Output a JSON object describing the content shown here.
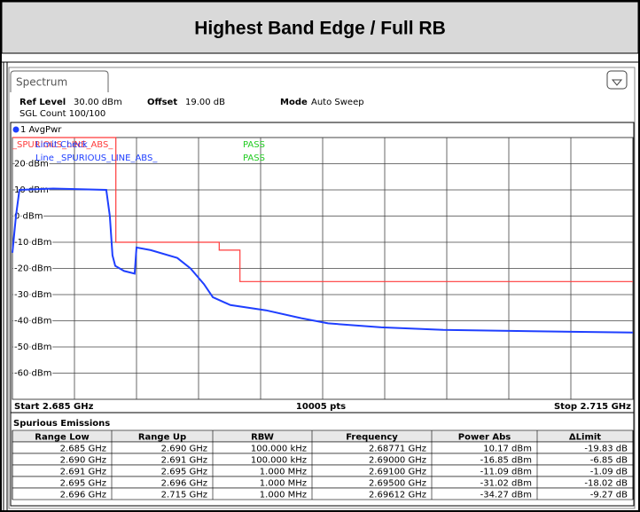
{
  "header": {
    "title": "Highest Band Edge / Full RB"
  },
  "instrument": {
    "tab": "Spectrum",
    "ref_level_label": "Ref Level",
    "ref_level": "30.00 dBm",
    "offset_label": "Offset",
    "offset": "19.00 dB",
    "mode_label": "Mode",
    "mode": "Auto Sweep",
    "count": "SGL Count 100/100"
  },
  "chart_data": {
    "type": "line",
    "series": [
      {
        "name": "1 AvgPwr",
        "color": "#1f3fff",
        "x": [
          2.685,
          2.68517,
          2.68534,
          2.68697,
          2.68954,
          2.68971,
          2.68984,
          2.68997,
          2.6904,
          2.69091,
          2.691,
          2.69169,
          2.69297,
          2.69361,
          2.69426,
          2.69469,
          2.69554,
          2.69726,
          2.69897,
          2.70026,
          2.70283,
          2.70583,
          2.71011,
          2.715
        ],
        "values": [
          -14,
          0,
          10,
          10.5,
          10,
          0,
          -15,
          -19,
          -21,
          -22,
          -12,
          -13,
          -16,
          -20,
          -26,
          -31,
          -34,
          -36,
          -39,
          -41,
          -42.5,
          -43.5,
          -44,
          -44.5
        ]
      },
      {
        "name": "_SPURIOUS_LINE_ABS_",
        "color": "#ff3b3b",
        "x": [
          2.685,
          2.69,
          2.69,
          2.695,
          2.695,
          2.696,
          2.696,
          2.715
        ],
        "values": [
          30,
          30,
          -10,
          -10,
          -13,
          -13,
          -25,
          -25
        ]
      }
    ],
    "limit_check_label": "Limit Check",
    "limit_check_result": "PASS",
    "line_label": "Line _SPURIOUS_LINE_ABS_",
    "line_result": "PASS",
    "xlim": [
      2.685,
      2.715
    ],
    "xticks": [
      2.685,
      2.688,
      2.691,
      2.694,
      2.697,
      2.7,
      2.703,
      2.706,
      2.709,
      2.712,
      2.715
    ],
    "ylim": [
      -70,
      30
    ],
    "yticks": [
      {
        "value": 20,
        "label": "20 dBm"
      },
      {
        "value": 10,
        "label": "10 dBm"
      },
      {
        "value": 0,
        "label": "0 dBm"
      },
      {
        "value": -10,
        "label": "-10 dBm"
      },
      {
        "value": -20,
        "label": "-20 dBm"
      },
      {
        "value": -30,
        "label": "-30 dBm"
      },
      {
        "value": -40,
        "label": "-40 dBm"
      },
      {
        "value": -50,
        "label": "-50 dBm"
      },
      {
        "value": -60,
        "label": "-60 dBm"
      }
    ],
    "grid": true,
    "start_label": "Start 2.685 GHz",
    "points_label": "10005 pts",
    "stop_label": "Stop 2.715 GHz"
  },
  "table": {
    "title": "Spurious Emissions",
    "columns": [
      "Range Low",
      "Range Up",
      "RBW",
      "Frequency",
      "Power Abs",
      "ΔLimit"
    ],
    "rows": [
      [
        "2.685 GHz",
        "2.690 GHz",
        "100.000 kHz",
        "2.68771 GHz",
        "10.17 dBm",
        "-19.83 dB"
      ],
      [
        "2.690 GHz",
        "2.691 GHz",
        "100.000 kHz",
        "2.69000 GHz",
        "-16.85 dBm",
        "-6.85 dB"
      ],
      [
        "2.691 GHz",
        "2.695 GHz",
        "1.000 MHz",
        "2.69100 GHz",
        "-11.09 dBm",
        "-1.09 dB"
      ],
      [
        "2.695 GHz",
        "2.696 GHz",
        "1.000 MHz",
        "2.69500 GHz",
        "-31.02 dBm",
        "-18.02 dB"
      ],
      [
        "2.696 GHz",
        "2.715 GHz",
        "1.000 MHz",
        "2.69612 GHz",
        "-34.27 dBm",
        "-9.27 dB"
      ]
    ]
  }
}
